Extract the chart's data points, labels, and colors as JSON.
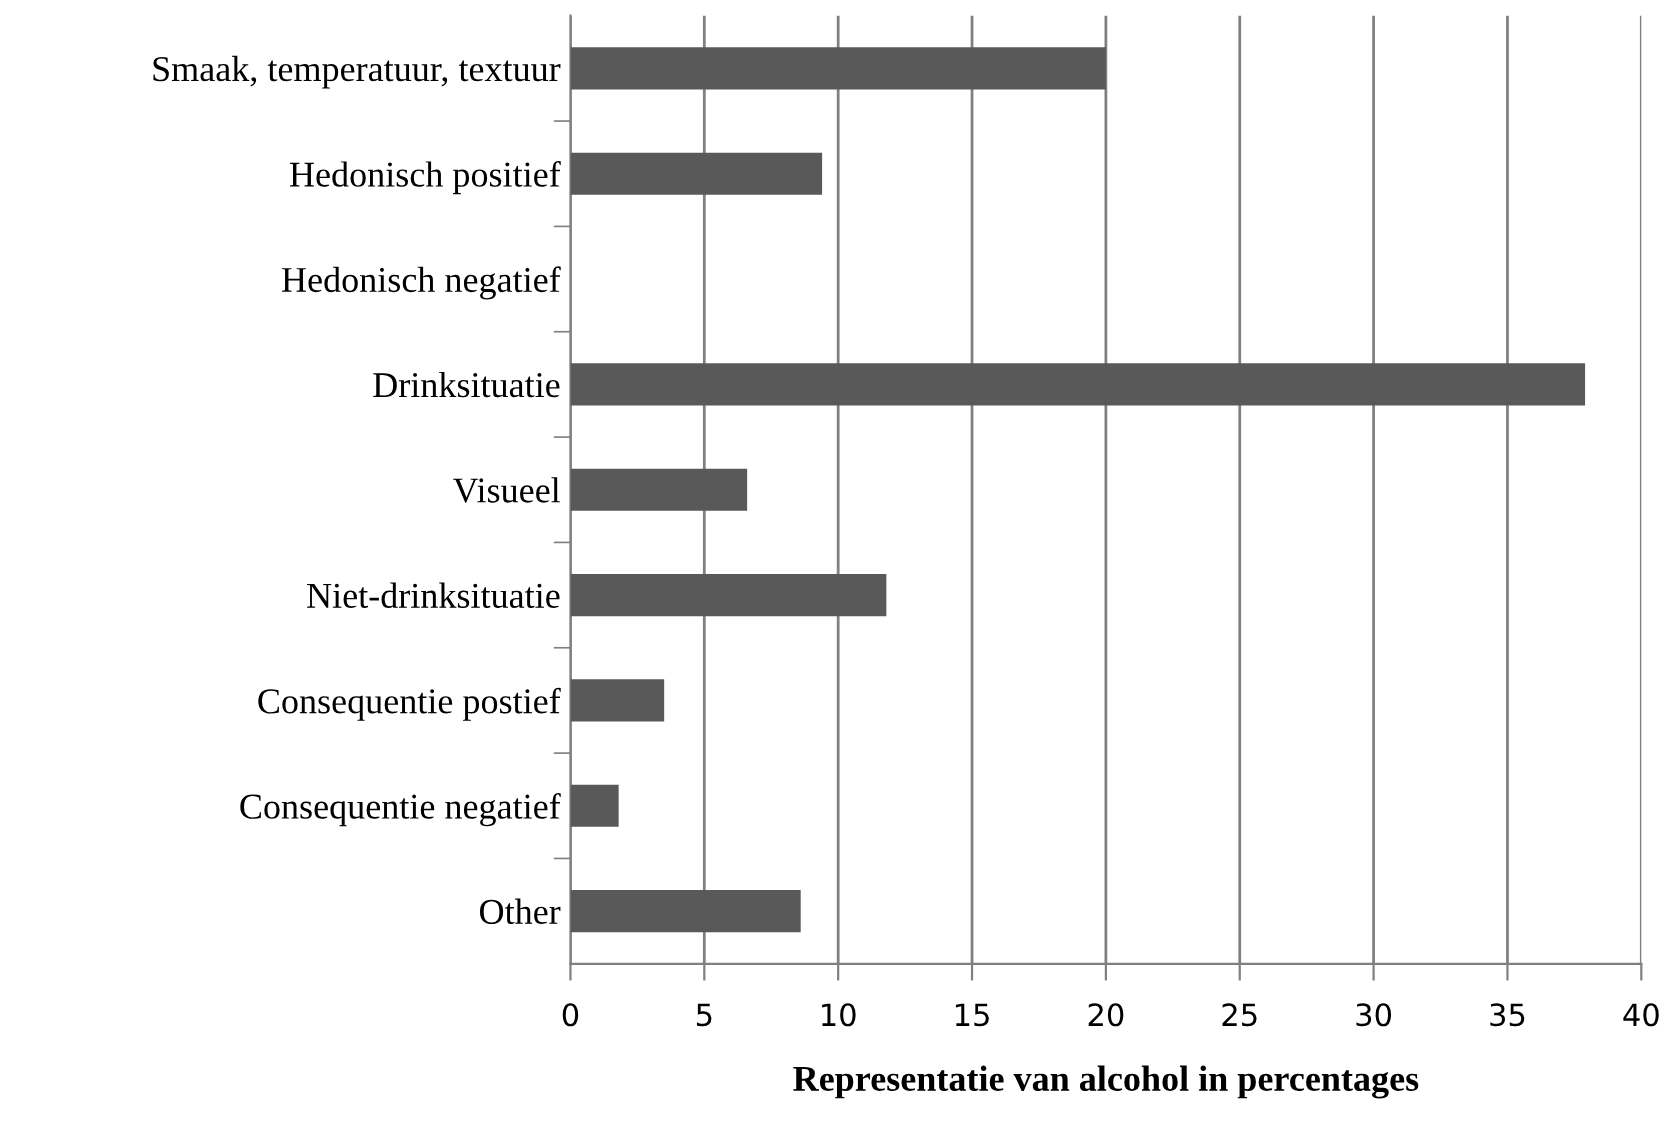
{
  "chart_data": {
    "type": "bar",
    "orientation": "horizontal",
    "xlabel": "Representatie van alcohol in percentages",
    "categories": [
      "Smaak, temperatuur, textuur",
      "Hedonisch positief",
      "Hedonisch negatief",
      "Drinksituatie",
      "Visueel",
      "Niet-drinksituatie",
      "Consequentie postief",
      "Consequentie negatief",
      "Other"
    ],
    "values": [
      20.0,
      9.4,
      0,
      37.9,
      6.6,
      11.8,
      3.5,
      1.8,
      8.6
    ],
    "color": "#595959",
    "xlim": [
      0,
      40
    ],
    "xticks": [
      0,
      5,
      10,
      15,
      20,
      25,
      30,
      35,
      40
    ],
    "grid": "x"
  }
}
